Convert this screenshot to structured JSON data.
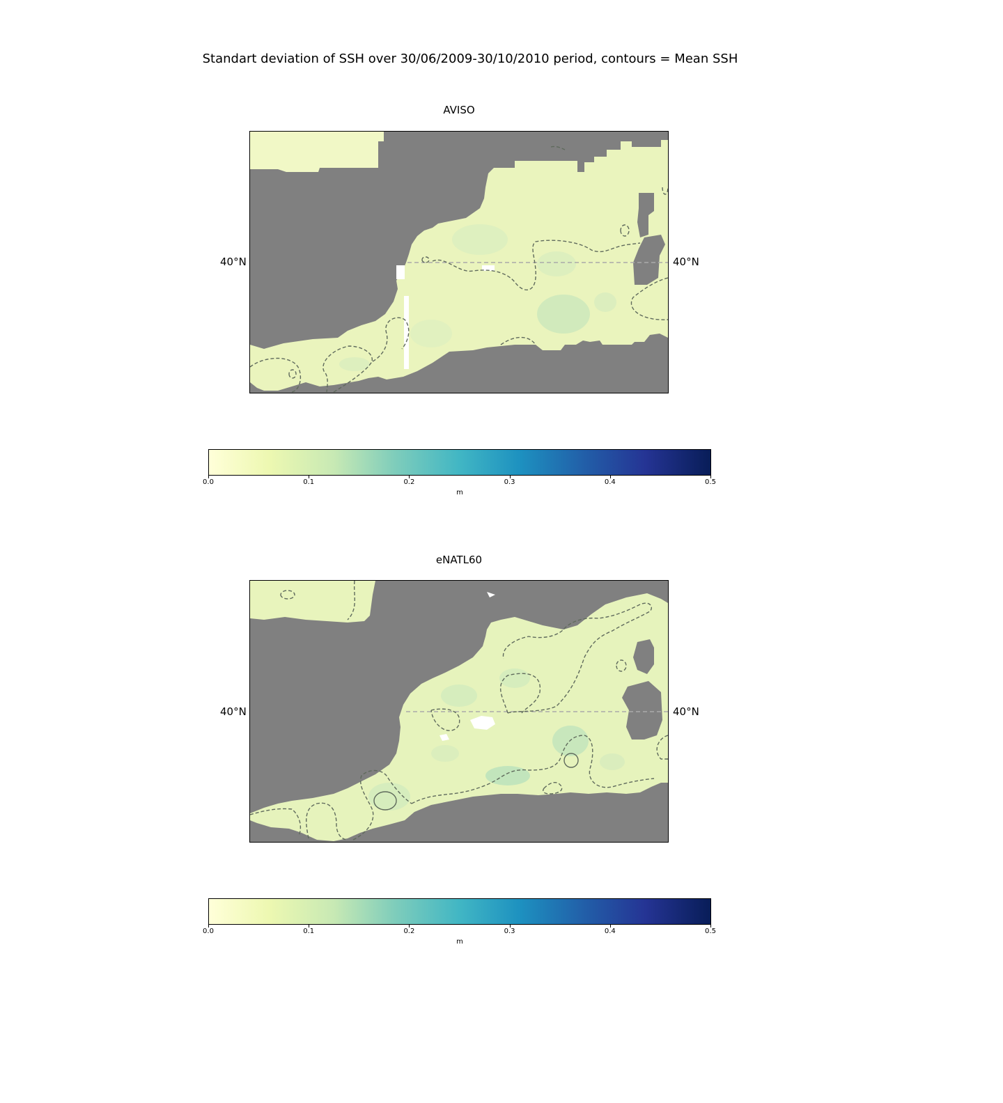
{
  "suptitle": "Standart deviation of SSH over 30/06/2009-30/10/2010 period, contours = Mean SSH",
  "panels": [
    {
      "title": "AVISO",
      "lat_label": "40°N"
    },
    {
      "title": "eNATL60",
      "lat_label": "40°N"
    }
  ],
  "colorbar": {
    "ticks": [
      "0.0",
      "0.1",
      "0.2",
      "0.3",
      "0.4",
      "0.5"
    ],
    "label": "m",
    "cmap": [
      "#ffffd9",
      "#edf8b1",
      "#c7e9b4",
      "#7fcdbb",
      "#41b6c4",
      "#1d91c0",
      "#225ea8",
      "#253494",
      "#081d58"
    ]
  },
  "colors": {
    "land": "#808080",
    "sea_low": "#eef6c0",
    "sea_mid": "#cde8bd",
    "contour": "#555555"
  }
}
